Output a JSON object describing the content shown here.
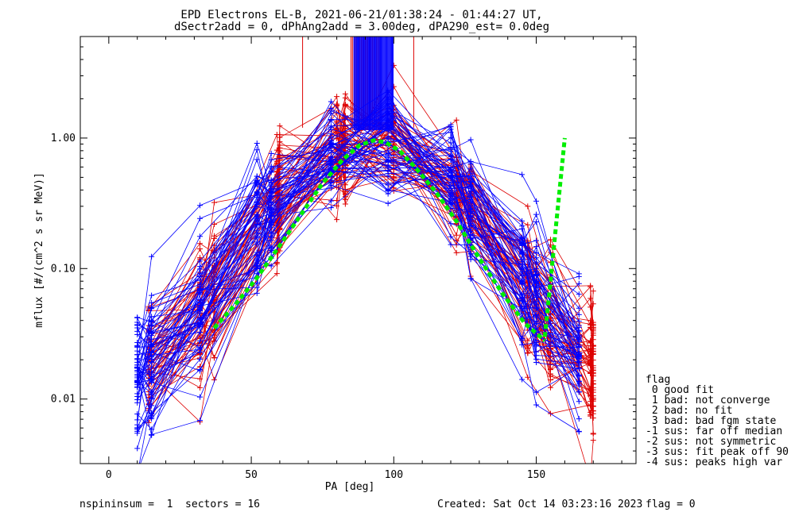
{
  "chart_data": {
    "type": "line",
    "title_line1": "EPD Electrons EL-B, 2021-06-21/01:38:24 - 01:44:27 UT,",
    "title_line2": "dSectr2add = 0, dPhAng2add = 3.00deg, dPA290_est=   0.0deg",
    "xlabel": "PA [deg]",
    "ylabel": "mflux [#/(cm^2 s sr MeV)]",
    "xlim": [
      -10,
      185
    ],
    "ylim": [
      0.0032,
      6.0
    ],
    "y_scale": "log",
    "x_ticks": [
      0,
      50,
      100,
      150
    ],
    "x_tick_labels": [
      "0",
      "50",
      "100",
      "150"
    ],
    "y_ticks": [
      0.01,
      0.1,
      1.0
    ],
    "y_tick_labels": [
      "0.01",
      "0.10",
      "1.00"
    ],
    "series": [
      {
        "name": "",
        "color": "#dd0000",
        "marker": "plus"
      },
      {
        "name": "",
        "color": "#0000ff",
        "marker": "plus"
      },
      {
        "name": "",
        "color": "#00ee00",
        "style": "dashed",
        "x": [
          37,
          45,
          52,
          60,
          68,
          75,
          82,
          88,
          93,
          97,
          102,
          108,
          115,
          122,
          130,
          138,
          146,
          153
        ],
        "y": [
          0.035,
          0.055,
          0.085,
          0.15,
          0.27,
          0.45,
          0.68,
          0.88,
          0.96,
          0.93,
          0.8,
          0.58,
          0.38,
          0.23,
          0.12,
          0.065,
          0.038,
          0.028
        ]
      },
      {
        "name": "",
        "color": "#00ee00",
        "style": "dashed",
        "x": [
          153,
          155,
          157,
          159,
          160
        ],
        "y": [
          0.03,
          0.08,
          0.22,
          0.6,
          1.0
        ]
      }
    ],
    "legend": {
      "placement": "right",
      "title": "flag",
      "entries": [
        " 0 good fit",
        " 1 bad: not converge",
        " 2 bad: no fit",
        " 3 bad: bad fgm state",
        "-1 sus: far off median",
        "-2 sus: not symmetric",
        "-3 sus: fit peak off 90",
        "-4 sus: peaks high var"
      ]
    }
  },
  "footer": {
    "left": "nspininsum =  1  sectors = 16",
    "created": "Created: Sat Oct 14 03:23:16 2023",
    "flag": "flag = 0"
  }
}
